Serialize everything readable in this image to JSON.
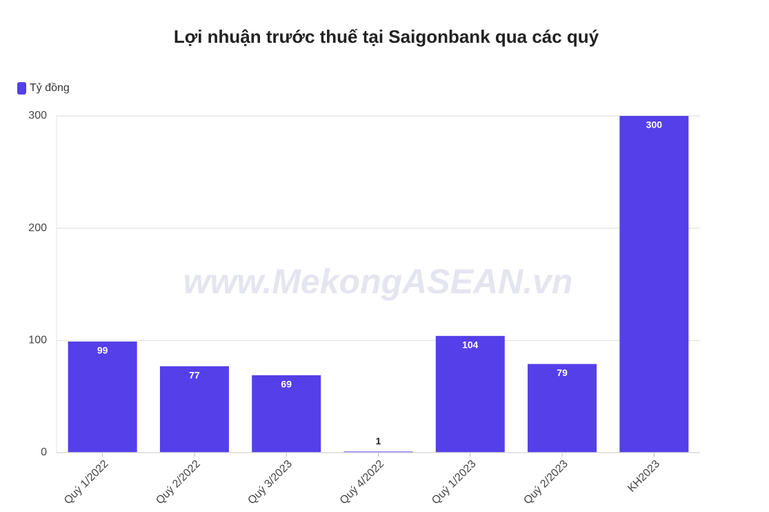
{
  "chart_data": {
    "type": "bar",
    "title": "Lợi nhuận trước thuế tại Saigonbank qua các quý",
    "watermark": "www.MekongASEAN.vn",
    "categories": [
      "Quý 1/2022",
      "Quý 2/2022",
      "Quý 3/2023",
      "Quý 4/2022",
      "Quý 1/2023",
      "Quý 2/2023",
      "KH2023"
    ],
    "series": [
      {
        "name": "Tỷ đồng",
        "color": "#553fe8",
        "values": [
          99,
          77,
          69,
          1,
          104,
          79,
          300
        ]
      }
    ],
    "ylim": [
      0,
      300
    ],
    "yticks": [
      0,
      100,
      200,
      300
    ],
    "grid": true,
    "legend": "top-left"
  }
}
